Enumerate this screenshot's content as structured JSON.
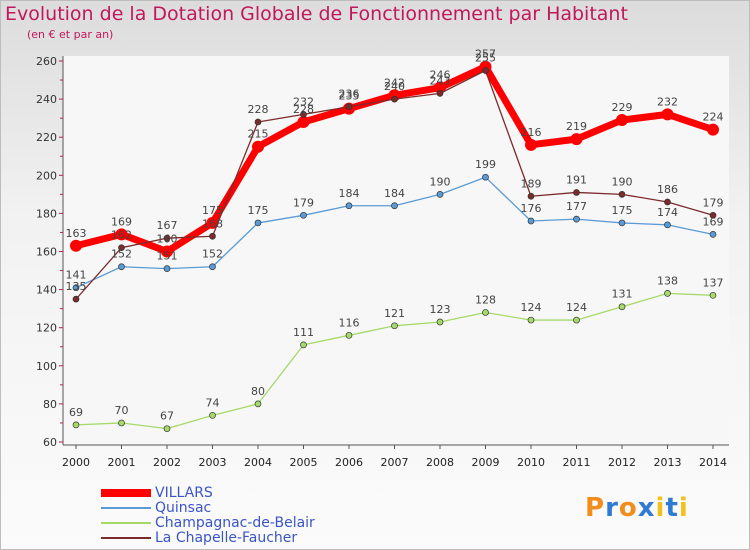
{
  "chart_data": {
    "type": "line",
    "title": "Evolution de la Dotation Globale de Fonctionnement par Habitant",
    "subtitle": "(en € et par an)",
    "xlabel": "",
    "ylabel": "",
    "ylim": [
      60,
      260
    ],
    "yticks": [
      60,
      80,
      100,
      120,
      140,
      160,
      180,
      200,
      220,
      240,
      260
    ],
    "categories": [
      "2000",
      "2001",
      "2002",
      "2003",
      "2004",
      "2005",
      "2006",
      "2007",
      "2008",
      "2009",
      "2010",
      "2011",
      "2012",
      "2013",
      "2014"
    ],
    "series": [
      {
        "name": "VILLARS",
        "color": "#ff0000",
        "values": [
          163,
          169,
          160,
          175,
          215,
          228,
          235,
          242,
          246,
          257,
          216,
          219,
          229,
          232,
          224
        ]
      },
      {
        "name": "Quinsac",
        "color": "#5b9bd5",
        "values": [
          141,
          152,
          151,
          152,
          175,
          179,
          184,
          184,
          190,
          199,
          176,
          177,
          175,
          174,
          169
        ]
      },
      {
        "name": "Champagnac-de-Belair",
        "color": "#a6d96a",
        "values": [
          69,
          70,
          67,
          74,
          80,
          111,
          116,
          121,
          123,
          128,
          124,
          124,
          131,
          138,
          137
        ]
      },
      {
        "name": "La Chapelle-Faucher",
        "color": "#7b2b2b",
        "values": [
          135,
          162,
          167,
          168,
          228,
          232,
          236,
          240,
          243,
          255,
          189,
          191,
          190,
          186,
          179
        ]
      }
    ],
    "legend_position": "bottom-left",
    "grid": false
  },
  "logo": {
    "letters": [
      "P",
      "r",
      "o",
      "x",
      "i",
      "t",
      "i"
    ],
    "colors": [
      "#f28c1c",
      "#2e7bd6",
      "#f28c1c",
      "#2e7bd6",
      "#f2c21c",
      "#2e7bd6",
      "#f2c21c"
    ]
  }
}
